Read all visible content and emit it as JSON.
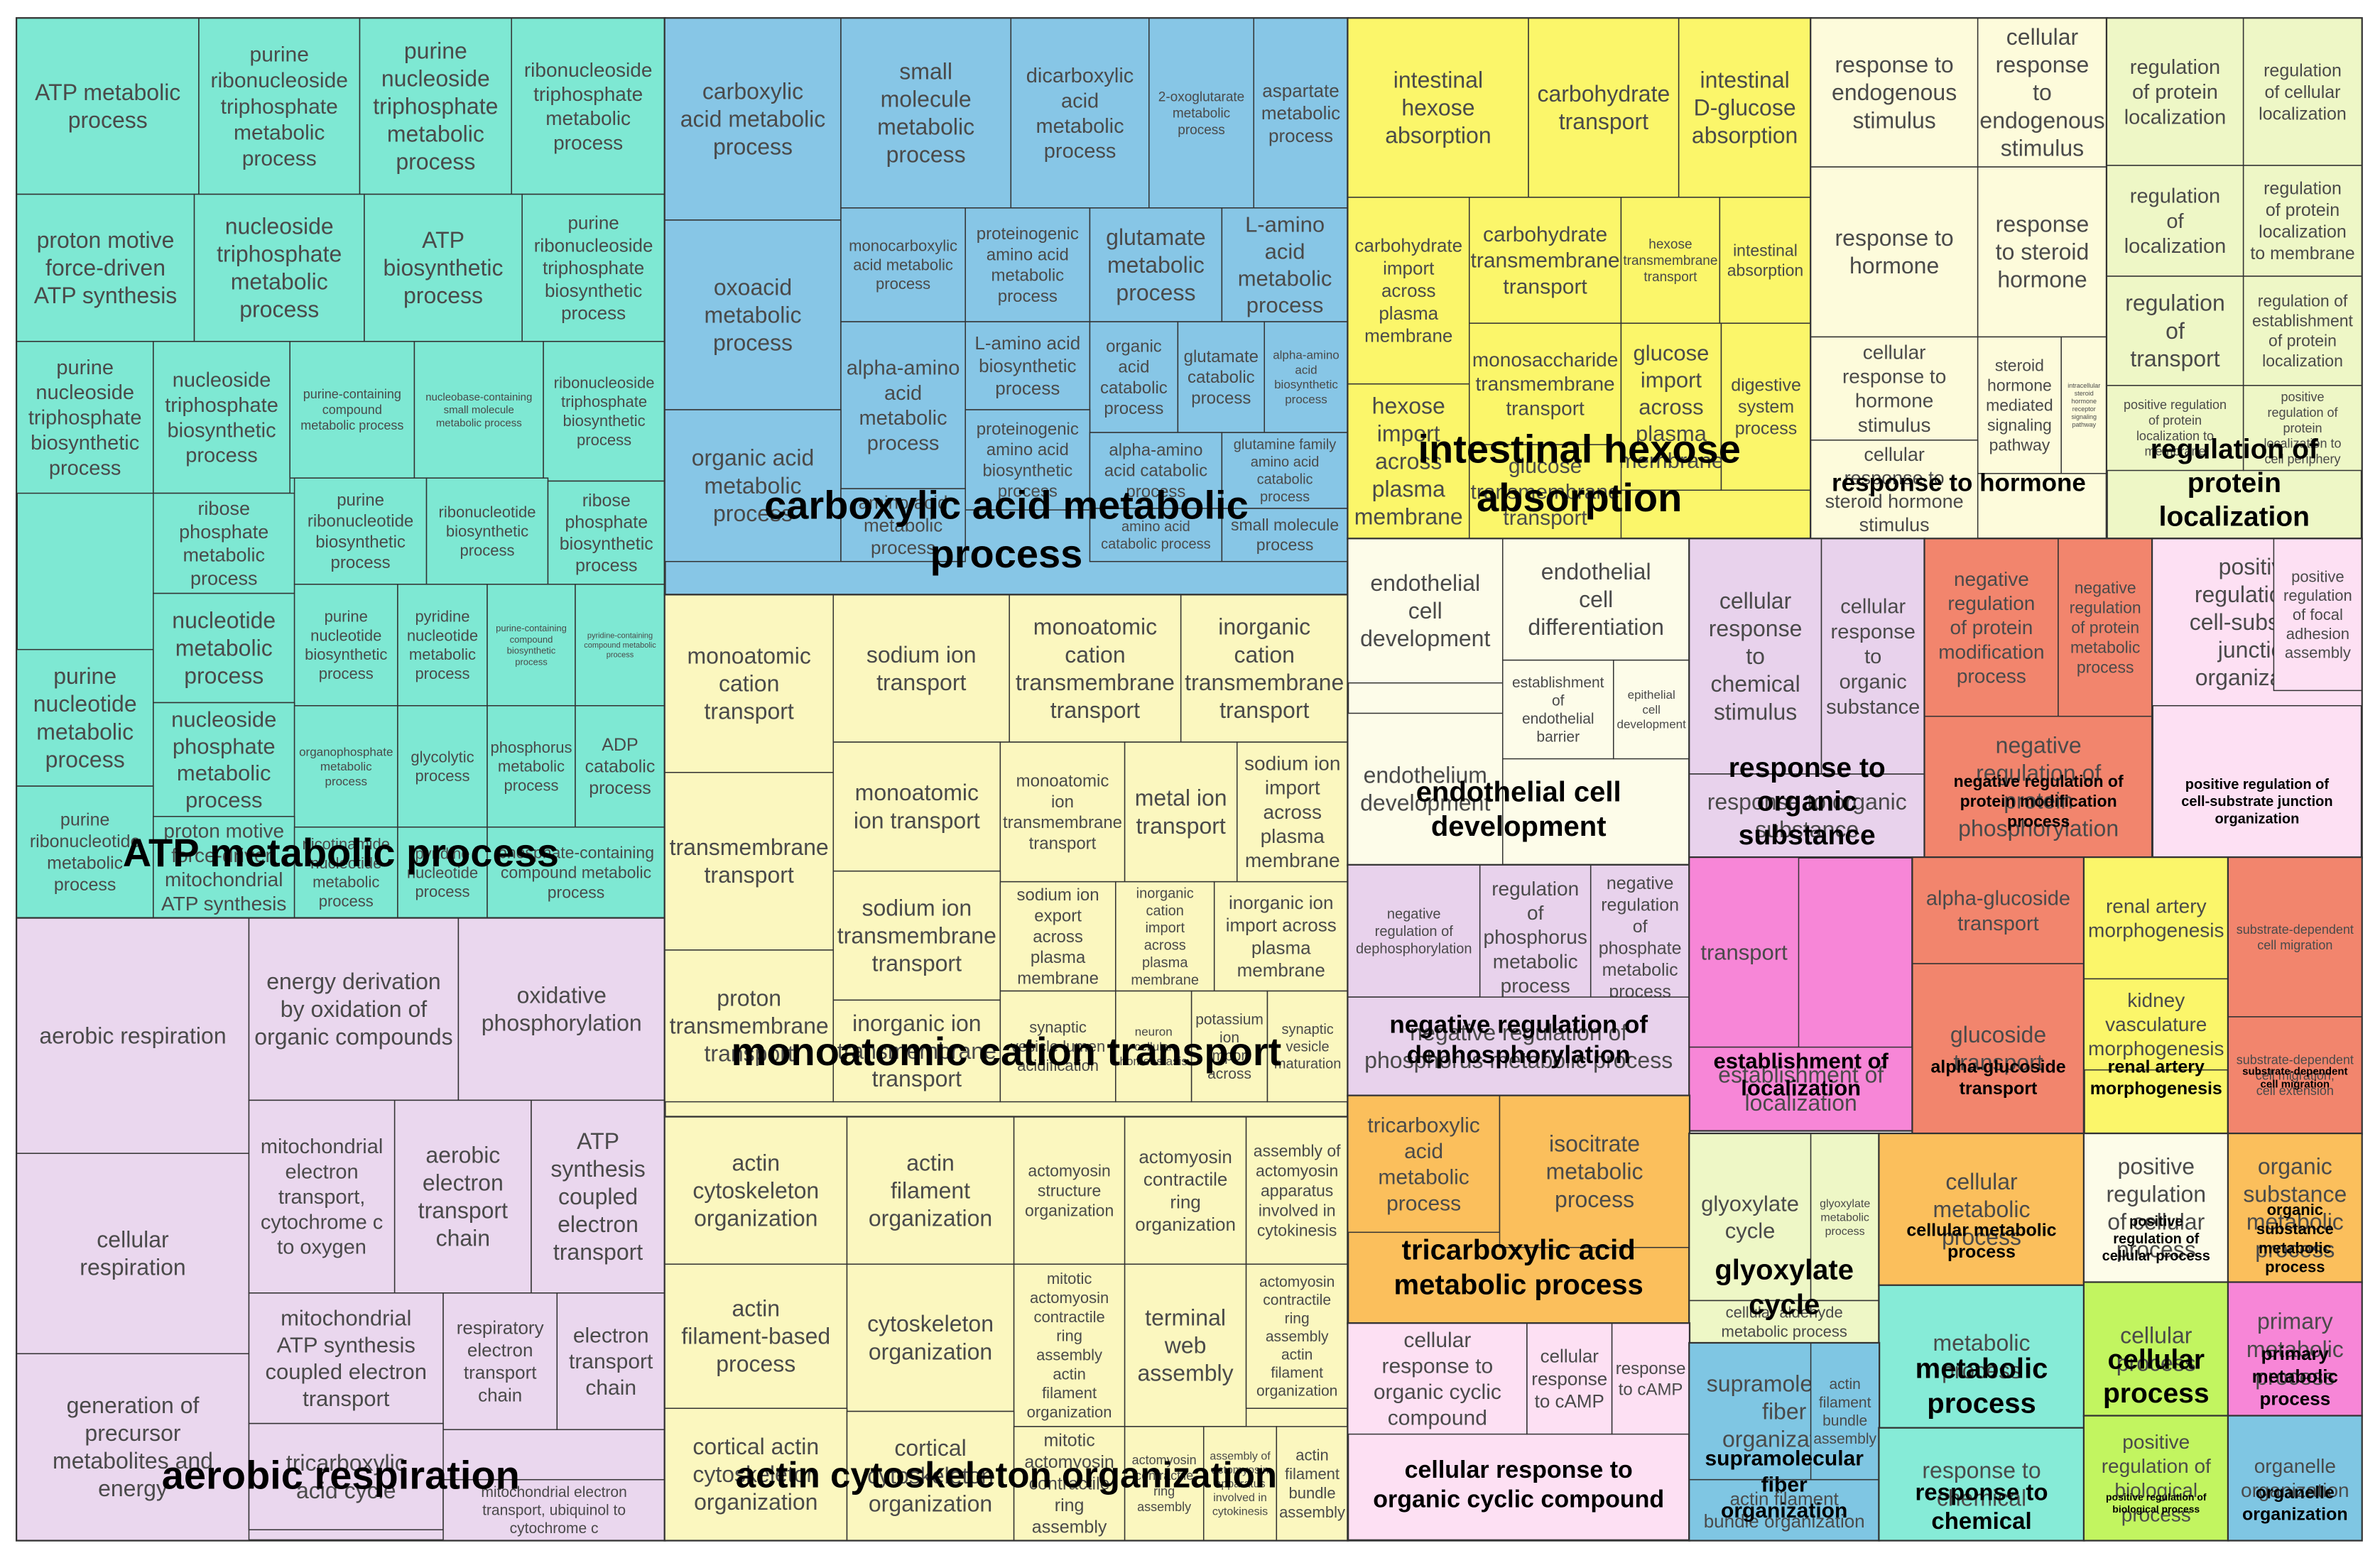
{
  "chart_data": {
    "type": "treemap",
    "title": "",
    "colors": {
      "teal": "#7ee8d3",
      "lavender": "#ead7ee",
      "blue": "#87c6e6",
      "cream": "#fbf7bf",
      "yellow": "#fbf66a",
      "offwhite": "#fdfbdb",
      "ivory": "#fdfce9",
      "lilac": "#e8d2ec",
      "salmon": "#f2856d",
      "pink": "#f786d7",
      "orange": "#fbbf5c",
      "palegreen": "#eef7c6",
      "sky": "#7fc6e3",
      "aqua": "#86ebd7",
      "lightpink": "#fde0f3",
      "lime": "#c2f560",
      "border": "#333333"
    },
    "groups": [
      {
        "label": "ATP metabolic process",
        "color": "teal",
        "tiles": [
          "ATP metabolic process",
          "purine ribonucleoside triphosphate metabolic process",
          "purine nucleoside triphosphate metabolic process",
          "ribonucleoside triphosphate metabolic process",
          "proton motive force-driven ATP synthesis",
          "nucleoside triphosphate metabolic process",
          "ATP biosynthetic process",
          "purine ribonucleoside triphosphate biosynthetic process",
          "purine nucleoside triphosphate biosynthetic process",
          "nucleoside triphosphate biosynthetic process",
          "purine-containing compound metabolic process",
          "nucleobase-containing small molecule metabolic process",
          "ribonucleotide metabolic process",
          "ribonucleoside triphosphate biosynthetic process",
          "ribose phosphate metabolic process",
          "purine ribonucleotide biosynthetic process",
          "ribonucleotide biosynthetic process",
          "ribose phosphate biosynthetic process",
          "purine nucleotide metabolic process",
          "nucleotide metabolic process",
          "purine nucleotide biosynthetic process",
          "pyridine nucleotide metabolic process",
          "purine-containing compound biosynthetic process",
          "pyridine-containing compound metabolic process",
          "nucleoside phosphate metabolic process",
          "organophosphate metabolic process",
          "glycolytic process",
          "phosphorus metabolic process",
          "ADP catabolic process",
          "purine ribonucleotide metabolic process",
          "proton motive force-driven mitochondrial ATP synthesis",
          "nicotinamide nucleotide metabolic process",
          "pyridine nucleotide process",
          "phosphate-containing compound metabolic process"
        ]
      },
      {
        "label": "aerobic respiration",
        "color": "lavender",
        "tiles": [
          "aerobic respiration",
          "energy derivation by oxidation of organic compounds",
          "oxidative phosphorylation",
          "cellular respiration",
          "mitochondrial electron transport, cytochrome c to oxygen",
          "aerobic electron transport chain",
          "ATP synthesis coupled electron transport",
          "generation of precursor metabolites and energy",
          "mitochondrial ATP synthesis coupled electron transport",
          "respiratory electron transport chain",
          "electron transport chain",
          "tricarboxylic acid cycle",
          "mitochondrial electron transport, ubiquinol to cytochrome c"
        ]
      },
      {
        "label": "carboxylic acid metabolic process",
        "color": "blue",
        "tiles": [
          "carboxylic acid metabolic process",
          "small molecule metabolic process",
          "dicarboxylic acid metabolic process",
          "2-oxoglutarate metabolic process",
          "aspartate metabolic process",
          "oxoacid metabolic process",
          "monocarboxylic acid metabolic process",
          "proteinogenic amino acid metabolic process",
          "glutamate metabolic process",
          "L-amino acid metabolic process",
          "L-amino acid biosynthetic process",
          "organic acid catabolic process",
          "glutamate catabolic process",
          "alpha-amino acid biosynthetic process",
          "alpha-amino acid metabolic process",
          "organic acid metabolic process",
          "proteinogenic amino acid biosynthetic process",
          "alpha-amino acid catabolic process",
          "glutamine family amino acid catabolic process",
          "amino acid metabolic process",
          "amino acid catabolic process",
          "small molecule process"
        ]
      },
      {
        "label": "monoatomic cation transport",
        "color": "cream",
        "tiles": [
          "monoatomic cation transport",
          "sodium ion transport",
          "monoatomic cation transmembrane transport",
          "inorganic cation transmembrane transport",
          "monoatomic ion transport",
          "transmembrane transport",
          "monoatomic ion transmembrane transport",
          "metal ion transport",
          "sodium ion import across plasma membrane",
          "sodium ion transmembrane transport",
          "sodium ion export across plasma membrane",
          "inorganic cation import across plasma membrane",
          "inorganic ion import across plasma membrane",
          "proton transmembrane transport",
          "inorganic ion transmembrane transport",
          "synaptic vesicle lumen acidification",
          "neuron cellular homeostasis",
          "potassium ion import across",
          "synaptic vesicle maturation"
        ]
      },
      {
        "label": "actin cytoskeleton organization",
        "color": "cream",
        "tiles": [
          "actin cytoskeleton organization",
          "actin filament organization",
          "actomyosin structure organization",
          "actomyosin contractile ring organization",
          "assembly of actomyosin apparatus involved in cytokinesis",
          "actin filament-based process",
          "cytoskeleton organization",
          "mitotic actomyosin contractile ring assembly actin filament organization",
          "terminal web assembly",
          "actomyosin contractile ring assembly actin filament organization",
          "cortical actin cytoskeleton organization",
          "cortical cytoskeleton organization",
          "mitotic actomyosin contractile ring assembly",
          "actomyosin contractile ring assembly",
          "assembly of actomyosin apparatus involved in cytokinesis",
          "actin filament bundle assembly"
        ]
      },
      {
        "label": "intestinal hexose absorption",
        "color": "yellow",
        "tiles": [
          "intestinal hexose absorption",
          "carbohydrate transport",
          "intestinal D-glucose absorption",
          "carbohydrate import across plasma membrane",
          "carbohydrate transmembrane transport",
          "hexose transmembrane transport",
          "intestinal absorption",
          "hexose import across plasma membrane",
          "monosaccharide transmembrane transport",
          "glucose import across plasma membrane",
          "digestive system process",
          "glucose transmembrane transport"
        ]
      },
      {
        "label": "response to hormone",
        "color": "offwhite",
        "tiles": [
          "response to endogenous stimulus",
          "cellular response to endogenous stimulus",
          "response to hormone",
          "response to steroid hormone",
          "cellular response to hormone stimulus",
          "steroid hormone mediated signaling pathway",
          "intracellular steroid hormone receptor signaling pathway",
          "cellular response to steroid hormone stimulus"
        ]
      },
      {
        "label": "regulation of protein localization",
        "color": "palegreen",
        "tiles": [
          "regulation of protein localization",
          "regulation of cellular localization",
          "regulation of localization",
          "regulation of protein localization to membrane",
          "regulation of transport",
          "regulation of establishment of protein localization",
          "positive regulation of protein localization to membrane",
          "positive regulation of protein localization to cell periphery"
        ]
      },
      {
        "label": "endothelial cell development",
        "color": "ivory",
        "tiles": [
          "endothelial cell development",
          "endothelial cell differentiation",
          "establishment of endothelial barrier",
          "epithelial cell development",
          "endothelium development"
        ]
      },
      {
        "label": "response to organic substance",
        "color": "lilac",
        "tiles": [
          "cellular response to chemical stimulus",
          "response to organic substance",
          "cellular response to organic substance"
        ]
      },
      {
        "label": "negative regulation of protein modification process",
        "color": "salmon",
        "tiles": [
          "negative regulation of protein modification process",
          "negative regulation of protein metabolic process",
          "negative regulation of protein phosphorylation"
        ]
      },
      {
        "label": "positive regulation of cell-substrate junction organization",
        "color": "lightpink",
        "tiles": [
          "positive regulation of cell-substrate junction organization",
          "positive regulation of focal adhesion assembly"
        ]
      },
      {
        "label": "negative regulation of dephosphorylation",
        "color": "lilac",
        "tiles": [
          "negative regulation of dephosphorylation",
          "regulation of phosphorus metabolic process",
          "negative regulation of phosphate metabolic process",
          "negative regulation of phosphorus metabolic process"
        ]
      },
      {
        "label": "establishment of localization",
        "color": "pink",
        "tiles": [
          "transport",
          "establishment of localization"
        ]
      },
      {
        "label": "alpha-glucoside transport",
        "color": "salmon",
        "tiles": [
          "alpha-glucoside transport",
          "glucoside transport"
        ]
      },
      {
        "label": "renal artery morphogenesis",
        "color": "yellow",
        "tiles": [
          "renal artery morphogenesis",
          "kidney vasculature morphogenesis"
        ]
      },
      {
        "label": "substrate-dependent cell migration",
        "color": "salmon",
        "tiles": [
          "substrate-dependent cell migration",
          "substrate-dependent cell migration, cell extension"
        ]
      },
      {
        "label": "tricarboxylic acid metabolic process",
        "color": "orange",
        "tiles": [
          "tricarboxylic acid metabolic process",
          "isocitrate metabolic process"
        ]
      },
      {
        "label": "glyoxylate cycle",
        "color": "palegreen",
        "tiles": [
          "glyoxylate cycle",
          "glyoxylate metabolic process",
          "cellular aldehyde metabolic process"
        ]
      },
      {
        "label": "cellular metabolic process",
        "color": "orange",
        "tiles": [
          "cellular metabolic process"
        ]
      },
      {
        "label": "positive regulation of cellular process",
        "color": "ivory",
        "tiles": [
          "positive regulation of cellular process"
        ]
      },
      {
        "label": "organic substance metabolic process",
        "color": "orange",
        "tiles": [
          "organic substance metabolic process"
        ]
      },
      {
        "label": "metabolic process",
        "color": "aqua",
        "tiles": [
          "metabolic process"
        ]
      },
      {
        "label": "cellular process",
        "color": "lime",
        "tiles": [
          "cellular process"
        ]
      },
      {
        "label": "primary metabolic process",
        "color": "pink",
        "tiles": [
          "primary metabolic process"
        ]
      },
      {
        "label": "cellular response to organic cyclic compound",
        "color": "lightpink",
        "tiles": [
          "cellular response to organic cyclic compound",
          "cellular response to cAMP",
          "response to cAMP"
        ]
      },
      {
        "label": "supramolecular fiber organization",
        "color": "sky",
        "tiles": [
          "supramolecular fiber organization",
          "actin filament bundle assembly",
          "actin filament bundle organization"
        ]
      },
      {
        "label": "response to chemical",
        "color": "aqua",
        "tiles": [
          "response to chemical"
        ]
      },
      {
        "label": "positive regulation of biological process",
        "color": "lime",
        "tiles": [
          "positive regulation of biological process"
        ]
      },
      {
        "label": "organelle organization",
        "color": "sky",
        "tiles": [
          "organelle organization"
        ]
      }
    ]
  }
}
